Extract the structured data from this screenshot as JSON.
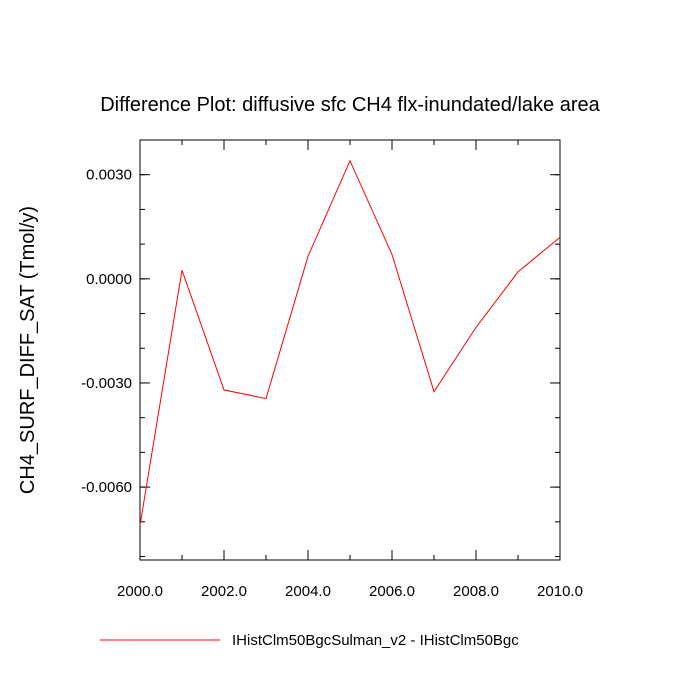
{
  "chart_data": {
    "type": "line",
    "title": "Difference Plot: diffusive sfc CH4 flx-inundated/lake area",
    "xlabel": "",
    "ylabel": "CH4_SURF_DIFF_SAT  (Tmol/y)",
    "xlim": [
      2000,
      2010
    ],
    "ylim": [
      -0.0081,
      0.004
    ],
    "x_ticks": [
      2000,
      2002,
      2004,
      2006,
      2008,
      2010
    ],
    "x_tick_labels": [
      "2000.0",
      "2002.0",
      "2004.0",
      "2006.0",
      "2008.0",
      "2010.0"
    ],
    "y_ticks": [
      0.003,
      0.0,
      -0.003,
      -0.006
    ],
    "y_tick_labels": [
      "0.0030",
      "0.0000",
      "-0.0030",
      "-0.0060"
    ],
    "y_minor_step": 0.001,
    "x_minor_step": 1,
    "grid": false,
    "legend_position": "bottom",
    "series": [
      {
        "name": "IHistClm50BgcSulman_v2 - IHistClm50Bgc",
        "color": "#ff0000",
        "x": [
          2000,
          2001,
          2002,
          2003,
          2004,
          2005,
          2006,
          2007,
          2008,
          2009,
          2010
        ],
        "y": [
          -0.0071,
          0.00025,
          -0.0032,
          -0.00345,
          0.00065,
          0.0034,
          0.0007,
          -0.00325,
          -0.0014,
          0.0002,
          0.0012
        ]
      }
    ]
  }
}
